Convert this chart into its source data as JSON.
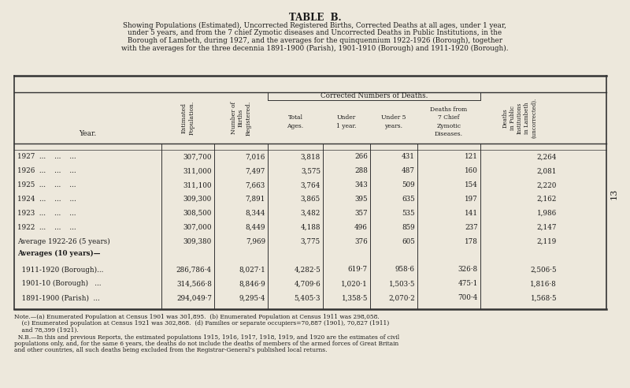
{
  "title": "TABLE  B.",
  "subtitle_lines": [
    "Showing Populations (Estimated), Uncorrected Registered Births, Corrected Deaths at all ages, under 1 year,",
    "under 5 years, and from the 7 chief Zymotic diseases and Uncorrected Deaths in Public Institutions, in the",
    "Borough of Lambeth, during 1927, and the averages for the quinquennium 1922-1926 (Borough), together",
    "with the averages for the three decennia 1891-1900 (Parish), 1901-1910 (Borough) and 1911-1920 (Borough)."
  ],
  "col_headers_rotated_0": "Estimated\nPopulation.",
  "col_headers_rotated_1": "Number of\nBirths\nRegistered.",
  "corrected_deaths_header": "Corrected Numbers of Deaths.",
  "col_headers_straight": [
    "Total\nAges.",
    "Under\n1 year.",
    "Under 5\nyears.",
    "Deaths from\n7 Chief\nZymotic\nDiseases."
  ],
  "last_col_rotated": "Deaths\nin Public\nInstitutions\nin Lambeth\n(uncorrected).",
  "year_col_header": "Year.",
  "rows": [
    {
      "year": "1927  ...    ...    ...",
      "pop": "307,700",
      "births": "7,016",
      "total": "3,818",
      "under1": "266",
      "under5": "431",
      "zymotic": "121",
      "deaths_pub": "2,264"
    },
    {
      "year": "1926  ...    ...    ...",
      "pop": "311,000",
      "births": "7,497",
      "total": "3,575",
      "under1": "288",
      "under5": "487",
      "zymotic": "160",
      "deaths_pub": "2,081"
    },
    {
      "year": "1925  ...    ...    ...",
      "pop": "311,100",
      "births": "7,663",
      "total": "3,764",
      "under1": "343",
      "under5": "509",
      "zymotic": "154",
      "deaths_pub": "2,220"
    },
    {
      "year": "1924  ...    ...    ...",
      "pop": "309,300",
      "births": "7,891",
      "total": "3,865",
      "under1": "395",
      "under5": "635",
      "zymotic": "197",
      "deaths_pub": "2,162"
    },
    {
      "year": "1923  ...    ...    ...",
      "pop": "308,500",
      "births": "8,344",
      "total": "3,482",
      "under1": "357",
      "under5": "535",
      "zymotic": "141",
      "deaths_pub": "1,986"
    },
    {
      "year": "1922  ...    ...    ...",
      "pop": "307,000",
      "births": "8,449",
      "total": "4,188",
      "under1": "496",
      "under5": "859",
      "zymotic": "237",
      "deaths_pub": "2,147"
    },
    {
      "year": "Average 1922-26 (5 years)",
      "pop": "309,380",
      "births": "7,969",
      "total": "3,775",
      "under1": "376",
      "under5": "605",
      "zymotic": "178",
      "deaths_pub": "2,119"
    }
  ],
  "averages_label": "Averages (10 years)—",
  "avg_rows": [
    {
      "year": "  1911-1920 (Borough)...",
      "pop": "286,786·4",
      "births": "8,027·1",
      "total": "4,282·5",
      "under1": "619·7",
      "under5": "958·6",
      "zymotic": "326·8",
      "deaths_pub": "2,506·5"
    },
    {
      "year": "  1901-10 (Borough)   ...",
      "pop": "314,566·8",
      "births": "8,846·9",
      "total": "4,709·6",
      "under1": "1,020·1",
      "under5": "1,503·5",
      "zymotic": "475·1",
      "deaths_pub": "1,816·8"
    },
    {
      "year": "  1891-1900 (Parish)  ...",
      "pop": "294,049·7",
      "births": "9,295·4",
      "total": "5,405·3",
      "under1": "1,358·5",
      "under5": "2,070·2",
      "zymotic": "700·4",
      "deaths_pub": "1,568·5"
    }
  ],
  "note_line1": "Note.—(a) Enumerated Population at Census 1901 was 301,895.  (b) Enumerated Population at Census 1911 was 298,058.",
  "note_line2": "    (c) Enumerated population at Census 1921 was 302,868.  (d) Families or separate occupiers=70,887 (1901), 70,827 (1911)",
  "note_line3": "    and 78,399 (1921).",
  "note_line4": "  N.B.—In this and previous Reports, the estimated populations 1915, 1916, 1917, 1918, 1919, and 1920 are the estimates of civil",
  "note_line5": "populations only, and, for the same 6 years, the deaths do not include the deaths of members of the armed forces of Great Britain",
  "note_line6": "and other countries, all such deaths being excluded from the Registrar-General’s published local returns.",
  "bg_color": "#ede8dc",
  "text_color": "#1a1a1a",
  "page_number": "13"
}
